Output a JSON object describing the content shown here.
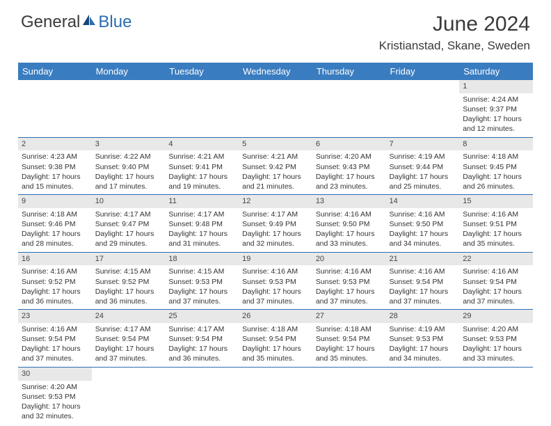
{
  "logo": {
    "text1": "General",
    "text2": "Blue"
  },
  "title": "June 2024",
  "location": "Kristianstad, Skane, Sweden",
  "dayHeaders": [
    "Sunday",
    "Monday",
    "Tuesday",
    "Wednesday",
    "Thursday",
    "Friday",
    "Saturday"
  ],
  "header_bg": "#3a7cc0",
  "header_fg": "#ffffff",
  "daynum_bg": "#e8e8e8",
  "border_color": "#2a6cb0",
  "weeks": [
    [
      null,
      null,
      null,
      null,
      null,
      null,
      {
        "n": "1",
        "sr": "Sunrise: 4:24 AM",
        "ss": "Sunset: 9:37 PM",
        "d1": "Daylight: 17 hours",
        "d2": "and 12 minutes."
      }
    ],
    [
      {
        "n": "2",
        "sr": "Sunrise: 4:23 AM",
        "ss": "Sunset: 9:38 PM",
        "d1": "Daylight: 17 hours",
        "d2": "and 15 minutes."
      },
      {
        "n": "3",
        "sr": "Sunrise: 4:22 AM",
        "ss": "Sunset: 9:40 PM",
        "d1": "Daylight: 17 hours",
        "d2": "and 17 minutes."
      },
      {
        "n": "4",
        "sr": "Sunrise: 4:21 AM",
        "ss": "Sunset: 9:41 PM",
        "d1": "Daylight: 17 hours",
        "d2": "and 19 minutes."
      },
      {
        "n": "5",
        "sr": "Sunrise: 4:21 AM",
        "ss": "Sunset: 9:42 PM",
        "d1": "Daylight: 17 hours",
        "d2": "and 21 minutes."
      },
      {
        "n": "6",
        "sr": "Sunrise: 4:20 AM",
        "ss": "Sunset: 9:43 PM",
        "d1": "Daylight: 17 hours",
        "d2": "and 23 minutes."
      },
      {
        "n": "7",
        "sr": "Sunrise: 4:19 AM",
        "ss": "Sunset: 9:44 PM",
        "d1": "Daylight: 17 hours",
        "d2": "and 25 minutes."
      },
      {
        "n": "8",
        "sr": "Sunrise: 4:18 AM",
        "ss": "Sunset: 9:45 PM",
        "d1": "Daylight: 17 hours",
        "d2": "and 26 minutes."
      }
    ],
    [
      {
        "n": "9",
        "sr": "Sunrise: 4:18 AM",
        "ss": "Sunset: 9:46 PM",
        "d1": "Daylight: 17 hours",
        "d2": "and 28 minutes."
      },
      {
        "n": "10",
        "sr": "Sunrise: 4:17 AM",
        "ss": "Sunset: 9:47 PM",
        "d1": "Daylight: 17 hours",
        "d2": "and 29 minutes."
      },
      {
        "n": "11",
        "sr": "Sunrise: 4:17 AM",
        "ss": "Sunset: 9:48 PM",
        "d1": "Daylight: 17 hours",
        "d2": "and 31 minutes."
      },
      {
        "n": "12",
        "sr": "Sunrise: 4:17 AM",
        "ss": "Sunset: 9:49 PM",
        "d1": "Daylight: 17 hours",
        "d2": "and 32 minutes."
      },
      {
        "n": "13",
        "sr": "Sunrise: 4:16 AM",
        "ss": "Sunset: 9:50 PM",
        "d1": "Daylight: 17 hours",
        "d2": "and 33 minutes."
      },
      {
        "n": "14",
        "sr": "Sunrise: 4:16 AM",
        "ss": "Sunset: 9:50 PM",
        "d1": "Daylight: 17 hours",
        "d2": "and 34 minutes."
      },
      {
        "n": "15",
        "sr": "Sunrise: 4:16 AM",
        "ss": "Sunset: 9:51 PM",
        "d1": "Daylight: 17 hours",
        "d2": "and 35 minutes."
      }
    ],
    [
      {
        "n": "16",
        "sr": "Sunrise: 4:16 AM",
        "ss": "Sunset: 9:52 PM",
        "d1": "Daylight: 17 hours",
        "d2": "and 36 minutes."
      },
      {
        "n": "17",
        "sr": "Sunrise: 4:15 AM",
        "ss": "Sunset: 9:52 PM",
        "d1": "Daylight: 17 hours",
        "d2": "and 36 minutes."
      },
      {
        "n": "18",
        "sr": "Sunrise: 4:15 AM",
        "ss": "Sunset: 9:53 PM",
        "d1": "Daylight: 17 hours",
        "d2": "and 37 minutes."
      },
      {
        "n": "19",
        "sr": "Sunrise: 4:16 AM",
        "ss": "Sunset: 9:53 PM",
        "d1": "Daylight: 17 hours",
        "d2": "and 37 minutes."
      },
      {
        "n": "20",
        "sr": "Sunrise: 4:16 AM",
        "ss": "Sunset: 9:53 PM",
        "d1": "Daylight: 17 hours",
        "d2": "and 37 minutes."
      },
      {
        "n": "21",
        "sr": "Sunrise: 4:16 AM",
        "ss": "Sunset: 9:54 PM",
        "d1": "Daylight: 17 hours",
        "d2": "and 37 minutes."
      },
      {
        "n": "22",
        "sr": "Sunrise: 4:16 AM",
        "ss": "Sunset: 9:54 PM",
        "d1": "Daylight: 17 hours",
        "d2": "and 37 minutes."
      }
    ],
    [
      {
        "n": "23",
        "sr": "Sunrise: 4:16 AM",
        "ss": "Sunset: 9:54 PM",
        "d1": "Daylight: 17 hours",
        "d2": "and 37 minutes."
      },
      {
        "n": "24",
        "sr": "Sunrise: 4:17 AM",
        "ss": "Sunset: 9:54 PM",
        "d1": "Daylight: 17 hours",
        "d2": "and 37 minutes."
      },
      {
        "n": "25",
        "sr": "Sunrise: 4:17 AM",
        "ss": "Sunset: 9:54 PM",
        "d1": "Daylight: 17 hours",
        "d2": "and 36 minutes."
      },
      {
        "n": "26",
        "sr": "Sunrise: 4:18 AM",
        "ss": "Sunset: 9:54 PM",
        "d1": "Daylight: 17 hours",
        "d2": "and 35 minutes."
      },
      {
        "n": "27",
        "sr": "Sunrise: 4:18 AM",
        "ss": "Sunset: 9:54 PM",
        "d1": "Daylight: 17 hours",
        "d2": "and 35 minutes."
      },
      {
        "n": "28",
        "sr": "Sunrise: 4:19 AM",
        "ss": "Sunset: 9:53 PM",
        "d1": "Daylight: 17 hours",
        "d2": "and 34 minutes."
      },
      {
        "n": "29",
        "sr": "Sunrise: 4:20 AM",
        "ss": "Sunset: 9:53 PM",
        "d1": "Daylight: 17 hours",
        "d2": "and 33 minutes."
      }
    ],
    [
      {
        "n": "30",
        "sr": "Sunrise: 4:20 AM",
        "ss": "Sunset: 9:53 PM",
        "d1": "Daylight: 17 hours",
        "d2": "and 32 minutes."
      },
      null,
      null,
      null,
      null,
      null,
      null
    ]
  ]
}
